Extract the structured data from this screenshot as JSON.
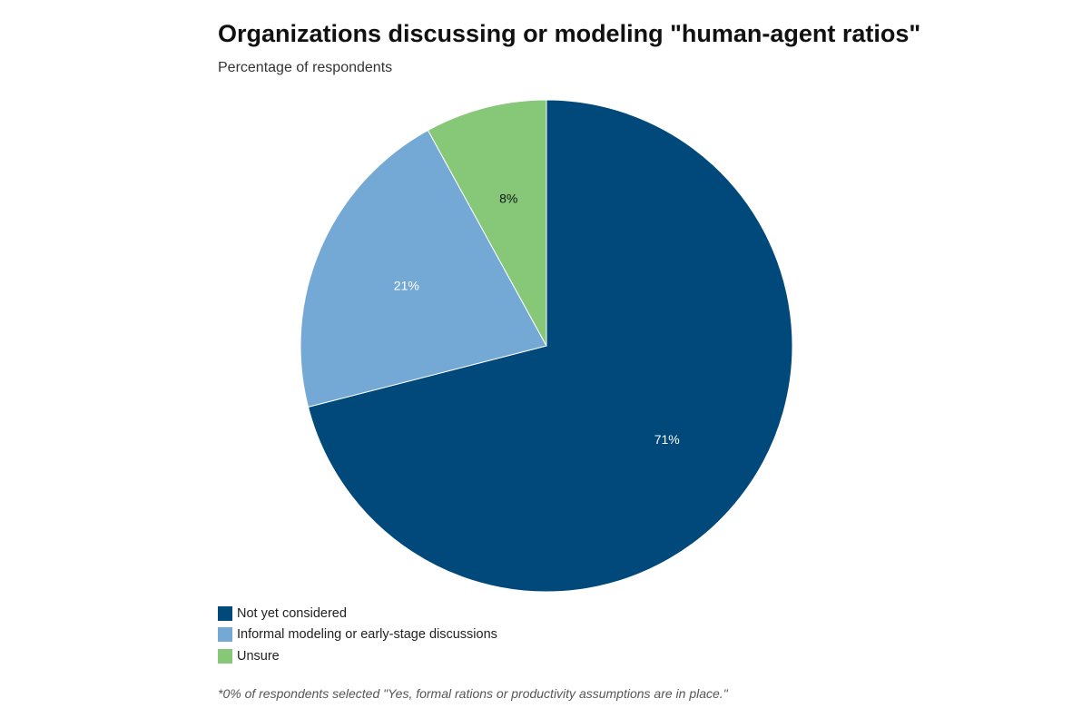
{
  "chart_data": {
    "type": "pie",
    "title": "Organizations discussing or modeling \"human-agent ratios\"",
    "subtitle": "Percentage of respondents",
    "slices": [
      {
        "name": "Not yet considered",
        "value": 71,
        "label": "71%",
        "color": "#01497a",
        "label_color": "#ffffff"
      },
      {
        "name": "Informal modeling or early-stage discussions",
        "value": 21,
        "label": "21%",
        "color": "#74a9d5",
        "label_color": "#ffffff"
      },
      {
        "name": "Unsure",
        "value": 8,
        "label": "8%",
        "color": "#86c878",
        "label_color": "#111111"
      }
    ],
    "start_angle_deg": 0,
    "direction": "clockwise",
    "legend_position": "bottom-left",
    "footnote": "*0% of respondents selected \"Yes, formal rations or productivity assumptions are in place.\""
  }
}
